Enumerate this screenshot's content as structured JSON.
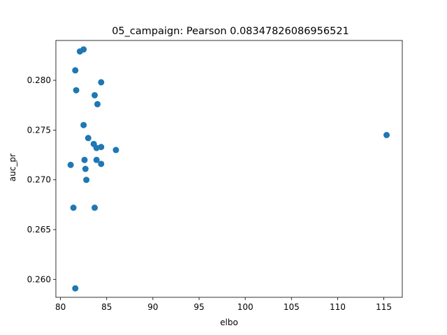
{
  "chart_data": {
    "type": "scatter",
    "title": "05_campaign: Pearson 0.08347826086956521",
    "xlabel": "elbo",
    "ylabel": "auc_pr",
    "xlim": [
      79.5,
      117.0
    ],
    "ylim": [
      0.2582,
      0.284
    ],
    "xticks": [
      80,
      85,
      90,
      95,
      100,
      105,
      110,
      115
    ],
    "xtick_labels": [
      "80",
      "85",
      "90",
      "95",
      "100",
      "105",
      "110",
      "115"
    ],
    "yticks": [
      0.26,
      0.265,
      0.27,
      0.275,
      0.28
    ],
    "ytick_labels": [
      "0.260",
      "0.265",
      "0.270",
      "0.275",
      "0.280"
    ],
    "grid": false,
    "marker_color": "#1f77b4",
    "points": [
      {
        "x": 82.1,
        "y": 0.2829
      },
      {
        "x": 82.5,
        "y": 0.2831
      },
      {
        "x": 81.6,
        "y": 0.281
      },
      {
        "x": 81.7,
        "y": 0.279
      },
      {
        "x": 84.4,
        "y": 0.2798
      },
      {
        "x": 83.7,
        "y": 0.2785
      },
      {
        "x": 84.0,
        "y": 0.2776
      },
      {
        "x": 82.5,
        "y": 0.2755
      },
      {
        "x": 83.0,
        "y": 0.2742
      },
      {
        "x": 83.6,
        "y": 0.2736
      },
      {
        "x": 83.9,
        "y": 0.2732
      },
      {
        "x": 84.4,
        "y": 0.2733
      },
      {
        "x": 86.0,
        "y": 0.273
      },
      {
        "x": 82.6,
        "y": 0.272
      },
      {
        "x": 83.9,
        "y": 0.272
      },
      {
        "x": 84.4,
        "y": 0.2716
      },
      {
        "x": 81.1,
        "y": 0.2715
      },
      {
        "x": 82.7,
        "y": 0.2711
      },
      {
        "x": 82.8,
        "y": 0.27
      },
      {
        "x": 81.4,
        "y": 0.2672
      },
      {
        "x": 83.7,
        "y": 0.2672
      },
      {
        "x": 81.6,
        "y": 0.2591
      },
      {
        "x": 115.3,
        "y": 0.2745
      }
    ]
  }
}
